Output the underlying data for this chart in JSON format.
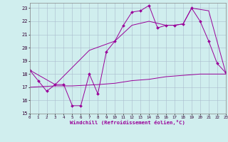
{
  "background_color": "#d0eeee",
  "grid_color": "#aabbcc",
  "line_color": "#990099",
  "xlim": [
    0,
    23
  ],
  "ylim": [
    15,
    23.4
  ],
  "yticks": [
    15,
    16,
    17,
    18,
    19,
    20,
    21,
    22,
    23
  ],
  "xticks": [
    0,
    1,
    2,
    3,
    4,
    5,
    6,
    7,
    8,
    9,
    10,
    11,
    12,
    13,
    14,
    15,
    16,
    17,
    18,
    19,
    20,
    21,
    22,
    23
  ],
  "xlabel": "Windchill (Refroidissement éolien,°C)",
  "jagged_x": [
    0,
    1,
    2,
    3,
    4,
    5,
    6,
    7,
    8,
    9,
    10,
    11,
    12,
    13,
    14,
    15,
    16,
    17,
    18,
    19,
    20,
    21,
    22,
    23
  ],
  "jagged_y": [
    18.3,
    17.5,
    16.7,
    17.2,
    17.2,
    15.6,
    15.6,
    18.0,
    16.5,
    19.7,
    20.5,
    21.7,
    22.7,
    22.8,
    23.2,
    21.5,
    21.7,
    21.7,
    21.8,
    23.0,
    22.0,
    20.5,
    18.8,
    18.1
  ],
  "trend_x": [
    0,
    3,
    7,
    10,
    12,
    14,
    16,
    17,
    18,
    19,
    21,
    23
  ],
  "trend_y": [
    18.3,
    17.2,
    19.8,
    20.5,
    21.7,
    22.0,
    21.7,
    21.7,
    21.8,
    23.0,
    22.8,
    18.1
  ],
  "flat_x": [
    0,
    3,
    4,
    5,
    8,
    10,
    12,
    14,
    16,
    17,
    18,
    20,
    22,
    23
  ],
  "flat_y": [
    17.0,
    17.1,
    17.1,
    17.1,
    17.2,
    17.3,
    17.5,
    17.6,
    17.8,
    17.85,
    17.9,
    18.0,
    18.0,
    18.0
  ]
}
